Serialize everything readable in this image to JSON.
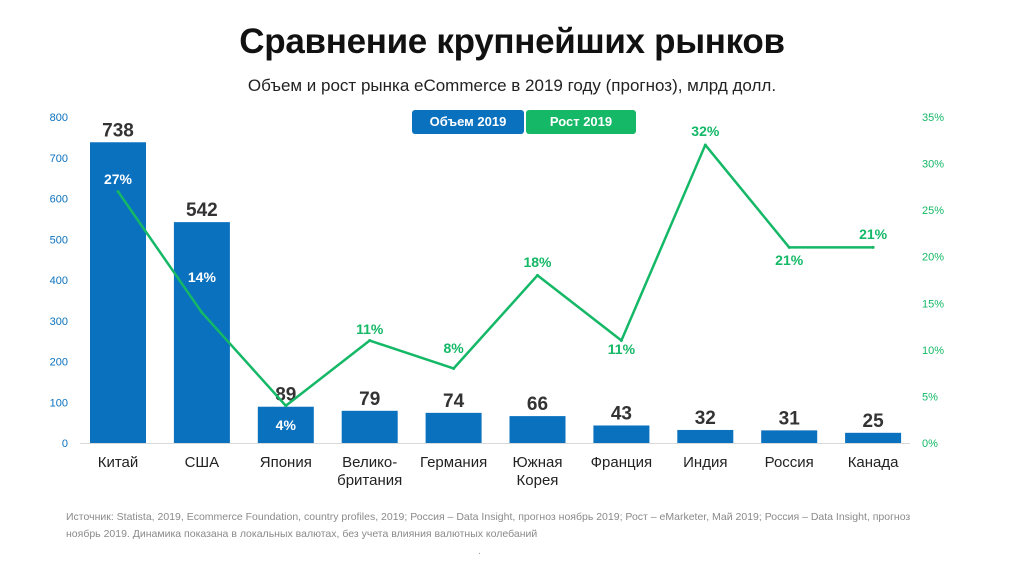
{
  "header": {
    "title": "Сравнение крупнейших рынков",
    "subtitle": "Объем и рост рынка eCommerce в 2019 году (прогноз), млрд долл."
  },
  "legend": {
    "volume_label": "Объем 2019",
    "growth_label": "Рост 2019"
  },
  "colors": {
    "bar": "#0a71bf",
    "line": "#14b866",
    "axis_left": "#0a71bf",
    "axis_right": "#14b866",
    "bar_label": "#333333",
    "growth_label_on_bar": "#ffffff"
  },
  "chart_data": {
    "type": "bar",
    "categories": [
      "Китай",
      "США",
      "Япония",
      "Велико-\nбритания",
      "Германия",
      "Южная\nКорея",
      "Франция",
      "Индия",
      "Россия",
      "Канада"
    ],
    "series": [
      {
        "name": "Объем 2019",
        "type": "bar",
        "axis": "left",
        "values": [
          738,
          542,
          89,
          79,
          74,
          66,
          43,
          32,
          31,
          25
        ],
        "labels": [
          "738",
          "542",
          "89",
          "79",
          "74",
          "66",
          "43",
          "32",
          "31",
          "25"
        ]
      },
      {
        "name": "Рост 2019",
        "type": "line",
        "axis": "right",
        "values": [
          27,
          14,
          4,
          11,
          8,
          18,
          11,
          32,
          21,
          21
        ],
        "labels": [
          "27%",
          "14%",
          "4%",
          "11%",
          "8%",
          "18%",
          "11%",
          "32%",
          "21%",
          "21%"
        ]
      }
    ],
    "y_left": {
      "min": 0,
      "max": 800,
      "ticks": [
        "0",
        "100",
        "200",
        "300",
        "400",
        "500",
        "600",
        "700",
        "800"
      ]
    },
    "y_right": {
      "min": 0,
      "max": 35,
      "ticks": [
        "0%",
        "5%",
        "10%",
        "15%",
        "20%",
        "25%",
        "30%",
        "35%"
      ]
    },
    "grid": false,
    "legend_position": "top-center"
  },
  "footnote": {
    "line1": "Источник: Statista, 2019, Ecommerce Foundation, country profiles, 2019;    Россия  – Data Insight, прогноз ноябрь 2019; Рост – eMarketer, Май 2019; Россия  – Data Insight, прогноз",
    "line2": "ноябрь 2019.     Динамика показана в локальных валютах, без учета влияния валютных колебаний",
    "dot": "."
  }
}
